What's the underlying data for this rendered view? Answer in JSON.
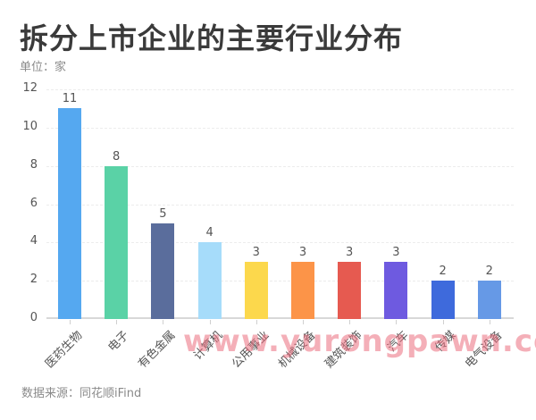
{
  "header": {
    "title": "拆分上市企业的主要行业分布",
    "unit": "单位：家"
  },
  "footer": {
    "source": "数据来源：同花顺iFind"
  },
  "watermark": "www.yurongpawn.com",
  "chart_data": {
    "type": "bar",
    "title": "拆分上市企业的主要行业分布",
    "subtitle": "单位：家",
    "xlabel": "",
    "ylabel": "",
    "ylim": [
      0,
      12
    ],
    "yticks": [
      0,
      2,
      4,
      6,
      8,
      10,
      12
    ],
    "grid": true,
    "legend": "none",
    "categories": [
      "医药生物",
      "电子",
      "有色金属",
      "计算机",
      "公用事业",
      "机械设备",
      "建筑装饰",
      "汽车",
      "传媒",
      "电气设备"
    ],
    "values": [
      11,
      8,
      5,
      4,
      3,
      3,
      3,
      3,
      2,
      2
    ],
    "colors": [
      "#55a8f0",
      "#5ad2a6",
      "#5a6d9c",
      "#a6dcfa",
      "#fcd84c",
      "#fc9448",
      "#e65a50",
      "#6e5ae0",
      "#3e6adc",
      "#6699e6"
    ],
    "annotations": "数据来源：同花顺iFind"
  }
}
